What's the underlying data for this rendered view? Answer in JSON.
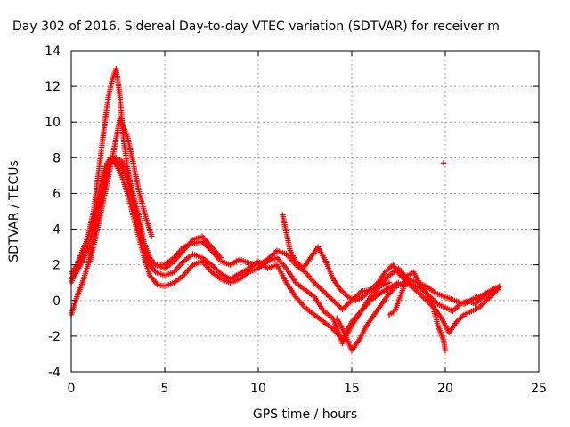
{
  "chart_data": {
    "type": "scatter",
    "title": "Day 302 of 2016, Sidereal Day-to-day VTEC variation (SDTVAR) for receiver m",
    "xlabel": "GPS time / hours",
    "ylabel": "SDTVAR / TECUs",
    "xlim": [
      0,
      25
    ],
    "ylim": [
      -4,
      14
    ],
    "x_ticks": [
      0,
      5,
      10,
      15,
      20,
      25
    ],
    "y_ticks": [
      -4,
      -2,
      0,
      2,
      4,
      6,
      8,
      10,
      12,
      14
    ],
    "grid": true,
    "marker": "plus",
    "color": "#ff0000",
    "series": [
      {
        "x": [
          0.0,
          0.3,
          0.6,
          0.9,
          1.2,
          1.5,
          1.8,
          2.0,
          2.2,
          2.4,
          2.6,
          2.8,
          3.0,
          3.3,
          3.6,
          3.9,
          4.2,
          4.5,
          5.0,
          5.5,
          6.0,
          6.5,
          7.0,
          7.5,
          8.0,
          8.5,
          9.0,
          9.5,
          10.0,
          10.5,
          11.0,
          11.5,
          12.0,
          12.5,
          13.0,
          13.5,
          14.0,
          14.5,
          15.0,
          15.5,
          16.0,
          16.5,
          17.0,
          17.5,
          18.0,
          18.5,
          19.0,
          19.5,
          20.0,
          20.5,
          21.0,
          21.5,
          22.0,
          22.5,
          22.9
        ],
        "y": [
          1.0,
          1.8,
          2.6,
          3.6,
          5.0,
          7.5,
          10.0,
          11.5,
          12.4,
          13.0,
          11.5,
          9.0,
          7.5,
          5.8,
          4.2,
          3.0,
          2.2,
          2.0,
          2.0,
          2.4,
          3.0,
          3.2,
          3.3,
          2.8,
          2.2,
          2.0,
          2.3,
          2.1,
          2.0,
          2.3,
          2.8,
          2.6,
          2.0,
          1.6,
          1.0,
          0.5,
          0.0,
          -0.5,
          0.0,
          0.5,
          0.6,
          0.9,
          1.4,
          1.8,
          1.2,
          1.0,
          0.8,
          0.4,
          0.2,
          0.0,
          -0.2,
          0.1,
          0.3,
          0.6,
          0.8
        ]
      },
      {
        "x": [
          0.0,
          0.3,
          0.6,
          0.9,
          1.2,
          1.5,
          1.8,
          2.1,
          2.4,
          2.7,
          3.0,
          3.3,
          3.6,
          3.9,
          4.2,
          4.5,
          5.0,
          5.5,
          6.0,
          6.5,
          7.0,
          7.5,
          8.0,
          8.5,
          9.0,
          9.5,
          10.0,
          10.5,
          11.0,
          11.5,
          12.0,
          12.5,
          13.0,
          13.5,
          14.0,
          14.5,
          15.0,
          15.5,
          16.0,
          16.5,
          17.0
        ],
        "y": [
          -0.8,
          0.2,
          1.0,
          2.0,
          3.5,
          5.5,
          7.5,
          8.0,
          7.8,
          7.5,
          6.8,
          5.5,
          4.0,
          2.8,
          2.0,
          1.6,
          1.4,
          1.6,
          2.2,
          2.6,
          2.4,
          2.0,
          1.5,
          1.2,
          1.5,
          1.8,
          2.2,
          1.8,
          2.0,
          1.0,
          0.2,
          -0.4,
          -0.8,
          -1.2,
          -1.6,
          -2.2,
          -1.2,
          -0.6,
          0.2,
          0.8,
          1.0
        ]
      },
      {
        "x": [
          0.0,
          0.3,
          0.6,
          0.9,
          1.2,
          1.5,
          1.8,
          2.1,
          2.4,
          2.7,
          3.0,
          3.3,
          3.6,
          3.9,
          4.2,
          4.6,
          5.0,
          5.5,
          6.0,
          6.5,
          7.0,
          7.5,
          8.0,
          8.5,
          9.0,
          9.5,
          10.0,
          10.5,
          11.0,
          11.5,
          12.0,
          12.5,
          13.0,
          13.5,
          14.0,
          14.5,
          15.0,
          15.5,
          16.0,
          16.5,
          17.0,
          17.5
        ],
        "y": [
          1.5,
          2.0,
          2.8,
          3.5,
          4.6,
          5.8,
          7.2,
          8.0,
          7.6,
          7.0,
          6.0,
          4.8,
          3.6,
          2.4,
          1.4,
          0.9,
          0.8,
          1.0,
          1.4,
          2.0,
          2.2,
          1.6,
          1.2,
          1.0,
          1.2,
          1.6,
          1.8,
          2.2,
          2.4,
          1.8,
          1.0,
          0.6,
          0.2,
          -0.6,
          -1.0,
          -2.4,
          -1.4,
          -0.6,
          0.0,
          0.4,
          0.7,
          1.0
        ]
      },
      {
        "x": [
          0.0,
          0.3,
          0.6,
          0.9,
          1.2,
          1.5,
          1.8,
          2.1,
          2.4,
          2.7,
          3.0,
          3.3,
          3.6,
          3.9,
          4.2,
          4.5,
          5.0,
          5.5,
          6.0,
          6.5,
          7.0,
          7.5,
          8.0
        ],
        "y": [
          1.2,
          1.6,
          2.2,
          3.0,
          4.0,
          5.2,
          6.6,
          7.8,
          8.0,
          7.8,
          7.2,
          6.0,
          4.8,
          3.2,
          2.4,
          2.0,
          1.8,
          2.2,
          2.8,
          3.4,
          3.6,
          3.0,
          2.4
        ]
      },
      {
        "x": [
          1.0,
          1.4,
          1.8,
          2.2,
          2.6,
          3.0,
          3.3,
          3.6,
          4.0,
          4.3
        ],
        "y": [
          2.2,
          4.0,
          6.0,
          8.0,
          10.2,
          9.2,
          7.8,
          6.2,
          4.6,
          3.6
        ]
      },
      {
        "x": [
          11.3,
          11.5,
          11.7,
          12.0,
          12.4,
          12.8,
          13.2,
          13.6,
          14.0,
          14.4,
          14.8,
          15.2,
          15.6,
          16.0,
          16.4,
          16.8,
          17.2,
          17.6,
          18.0,
          18.4,
          18.8,
          19.2,
          19.6,
          20.0,
          20.4,
          20.8,
          21.2,
          21.6,
          22.0,
          22.4,
          22.8
        ],
        "y": [
          4.8,
          3.8,
          2.8,
          2.2,
          1.8,
          2.4,
          3.0,
          2.2,
          1.2,
          0.6,
          0.2,
          0.0,
          0.2,
          0.6,
          1.0,
          1.6,
          2.0,
          1.4,
          1.0,
          0.8,
          0.6,
          0.2,
          -0.2,
          -0.4,
          -0.6,
          -0.2,
          0.0,
          -0.2,
          0.2,
          0.4,
          0.6
        ]
      },
      {
        "x": [
          14.2,
          14.6,
          15.0,
          15.4,
          15.8,
          16.2,
          16.6,
          17.0,
          17.4,
          17.8,
          18.2,
          18.6,
          19.0,
          19.4,
          19.8,
          20.2,
          20.6,
          21.0,
          21.4,
          21.8,
          22.2,
          22.6,
          22.9
        ],
        "y": [
          -1.0,
          -1.8,
          -2.8,
          -2.2,
          -1.4,
          -0.8,
          -0.2,
          0.4,
          0.8,
          1.0,
          0.8,
          0.4,
          0.0,
          -0.4,
          -1.0,
          -1.8,
          -1.2,
          -0.8,
          -0.6,
          -0.4,
          0.0,
          0.4,
          0.8
        ]
      },
      {
        "x": [
          17.0,
          17.3,
          18.0,
          18.3,
          18.6,
          19.0,
          19.3,
          19.6,
          19.9,
          20.0
        ],
        "y": [
          -0.8,
          -0.6,
          1.4,
          1.6,
          1.0,
          0.4,
          -0.2,
          -1.4,
          -2.2,
          -2.8
        ]
      },
      {
        "x": [
          19.9
        ],
        "y": [
          7.7
        ]
      }
    ]
  }
}
